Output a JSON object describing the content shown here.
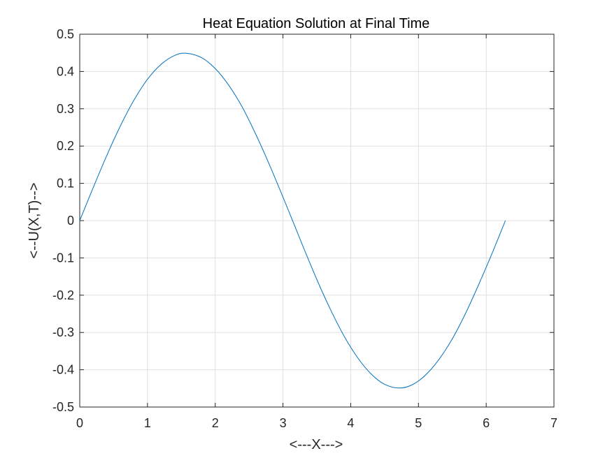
{
  "chart_data": {
    "type": "line",
    "title": "Heat Equation Solution at Final Time",
    "xlabel": "<---X--->",
    "ylabel": "<--U(X,T)-->",
    "xlim": [
      0,
      7
    ],
    "ylim": [
      -0.5,
      0.5
    ],
    "x_ticks": [
      "0",
      "1",
      "2",
      "3",
      "4",
      "5",
      "6",
      "7"
    ],
    "y_ticks": [
      "-0.5",
      "-0.4",
      "-0.3",
      "-0.2",
      "-0.1",
      "0",
      "0.1",
      "0.2",
      "0.3",
      "0.4",
      "0.5"
    ],
    "grid": true,
    "series": [
      {
        "color": "#0072bd",
        "x": [
          0,
          0.2,
          0.4,
          0.6,
          0.8,
          1.0,
          1.2,
          1.4,
          1.5708,
          1.8,
          2.0,
          2.2,
          2.4,
          2.6,
          2.8,
          3.0,
          3.1416,
          3.3,
          3.5,
          3.7,
          3.9,
          4.1,
          4.3,
          4.5,
          4.7124,
          4.9,
          5.1,
          5.3,
          5.5,
          5.7,
          5.9,
          6.1,
          6.2832
        ],
        "y": [
          0,
          0.089,
          0.175,
          0.254,
          0.323,
          0.379,
          0.419,
          0.443,
          0.449,
          0.437,
          0.408,
          0.363,
          0.304,
          0.231,
          0.15,
          0.063,
          0,
          -0.071,
          -0.158,
          -0.238,
          -0.309,
          -0.367,
          -0.411,
          -0.439,
          -0.449,
          -0.441,
          -0.415,
          -0.373,
          -0.317,
          -0.247,
          -0.167,
          -0.082,
          0
        ]
      }
    ]
  }
}
